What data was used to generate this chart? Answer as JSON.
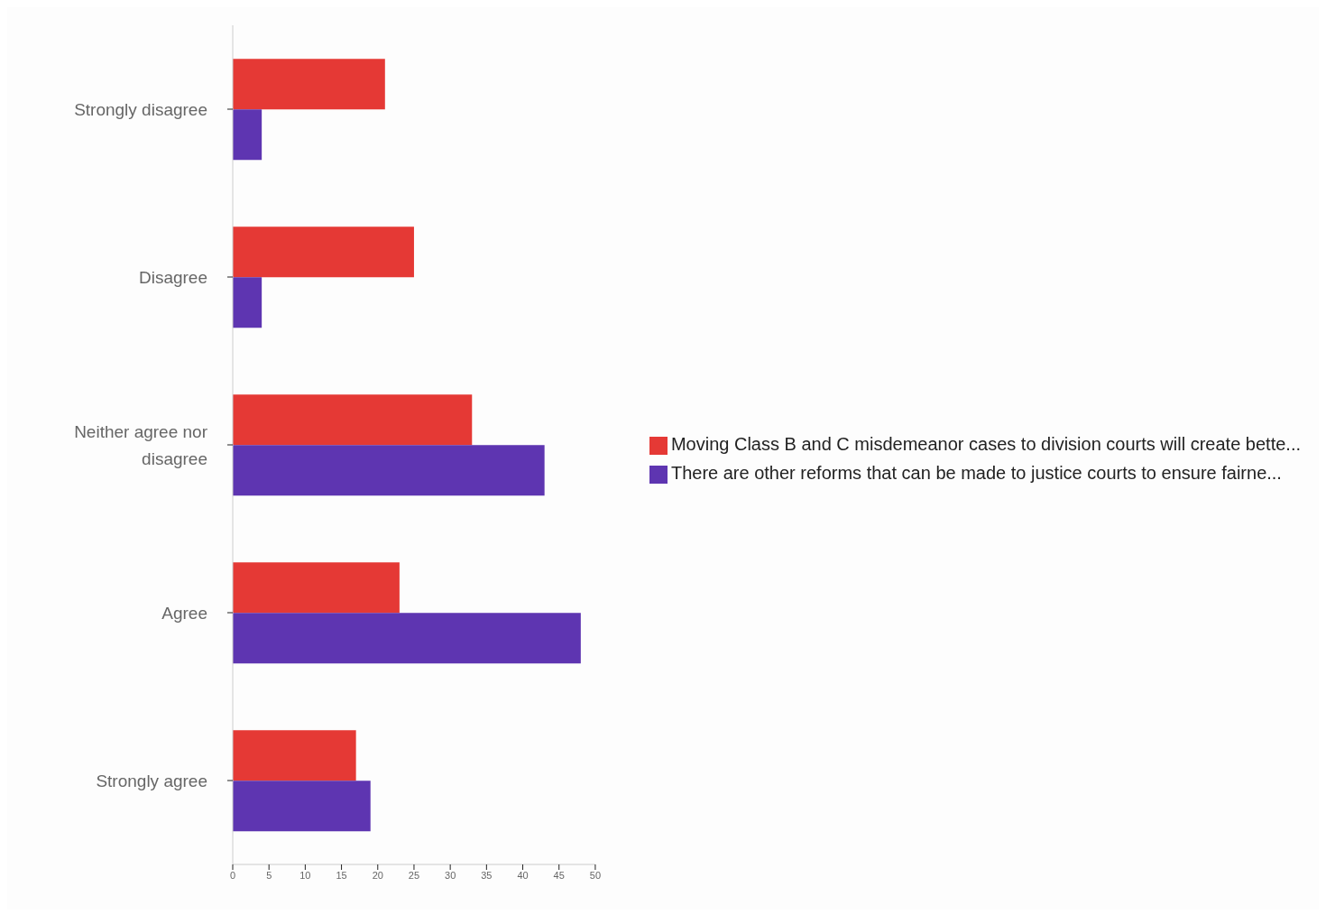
{
  "chart_data": {
    "type": "bar",
    "orientation": "horizontal",
    "categories": [
      "Strongly disagree",
      "Disagree",
      "Neither agree nor disagree",
      "Agree",
      "Strongly agree"
    ],
    "series": [
      {
        "name": "Moving Class B and C misdemeanor cases to division courts will create bette...",
        "color": "#e53935",
        "values": [
          21,
          25,
          33,
          23,
          17
        ]
      },
      {
        "name": "There are other reforms that can be made to justice courts to ensure fairne...",
        "color": "#5e35b1",
        "values": [
          4,
          4,
          43,
          48,
          19
        ]
      }
    ],
    "xlim": [
      0,
      50
    ],
    "xticks": [
      0,
      5,
      10,
      15,
      20,
      25,
      30,
      35,
      40,
      45,
      50
    ],
    "grid": false,
    "legend": "right"
  }
}
